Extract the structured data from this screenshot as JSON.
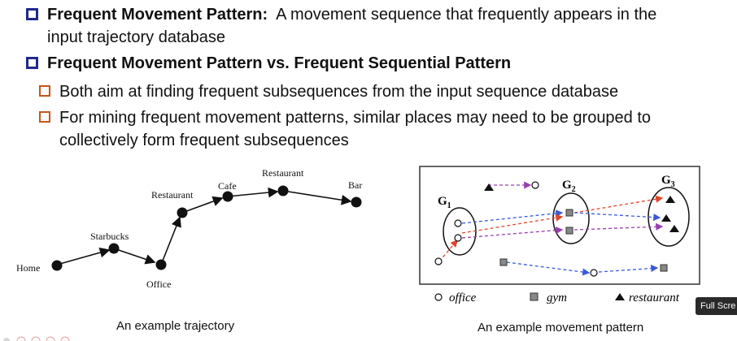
{
  "bullets": {
    "b1": {
      "term": "Frequent Movement Pattern:",
      "text1": "A movement sequence that frequently appears in the",
      "text2": "input trajectory database"
    },
    "b2": {
      "term": "Frequent Movement Pattern vs. Frequent Sequential Pattern"
    },
    "sub1": {
      "text": "Both aim at finding frequent subsequences from the input sequence database"
    },
    "sub2": {
      "text1": "For mining frequent movement patterns, similar places may need to be grouped to",
      "text2": "collectively form frequent subsequences"
    }
  },
  "trajectory": {
    "labels": {
      "home": "Home",
      "starbucks": "Starbucks",
      "office": "Office",
      "restaurant1": "Restaurant",
      "cafe": "Cafe",
      "restaurant2": "Restaurant",
      "bar": "Bar"
    },
    "caption": "An example trajectory"
  },
  "pattern": {
    "groups": {
      "g1": "G",
      "g1_sub": "1",
      "g2": "G",
      "g2_sub": "2",
      "g3": "G",
      "g3_sub": "3"
    },
    "legend": {
      "office": "office",
      "gym": "gym",
      "restaurant": "restaurant"
    },
    "caption": "An example movement pattern",
    "colors": {
      "blue": "#3a5bd9",
      "red": "#e0452b",
      "purple": "#9a3fb0",
      "frame": "#333333"
    }
  },
  "overlay": {
    "fullscreen_label": "Full Scre"
  }
}
